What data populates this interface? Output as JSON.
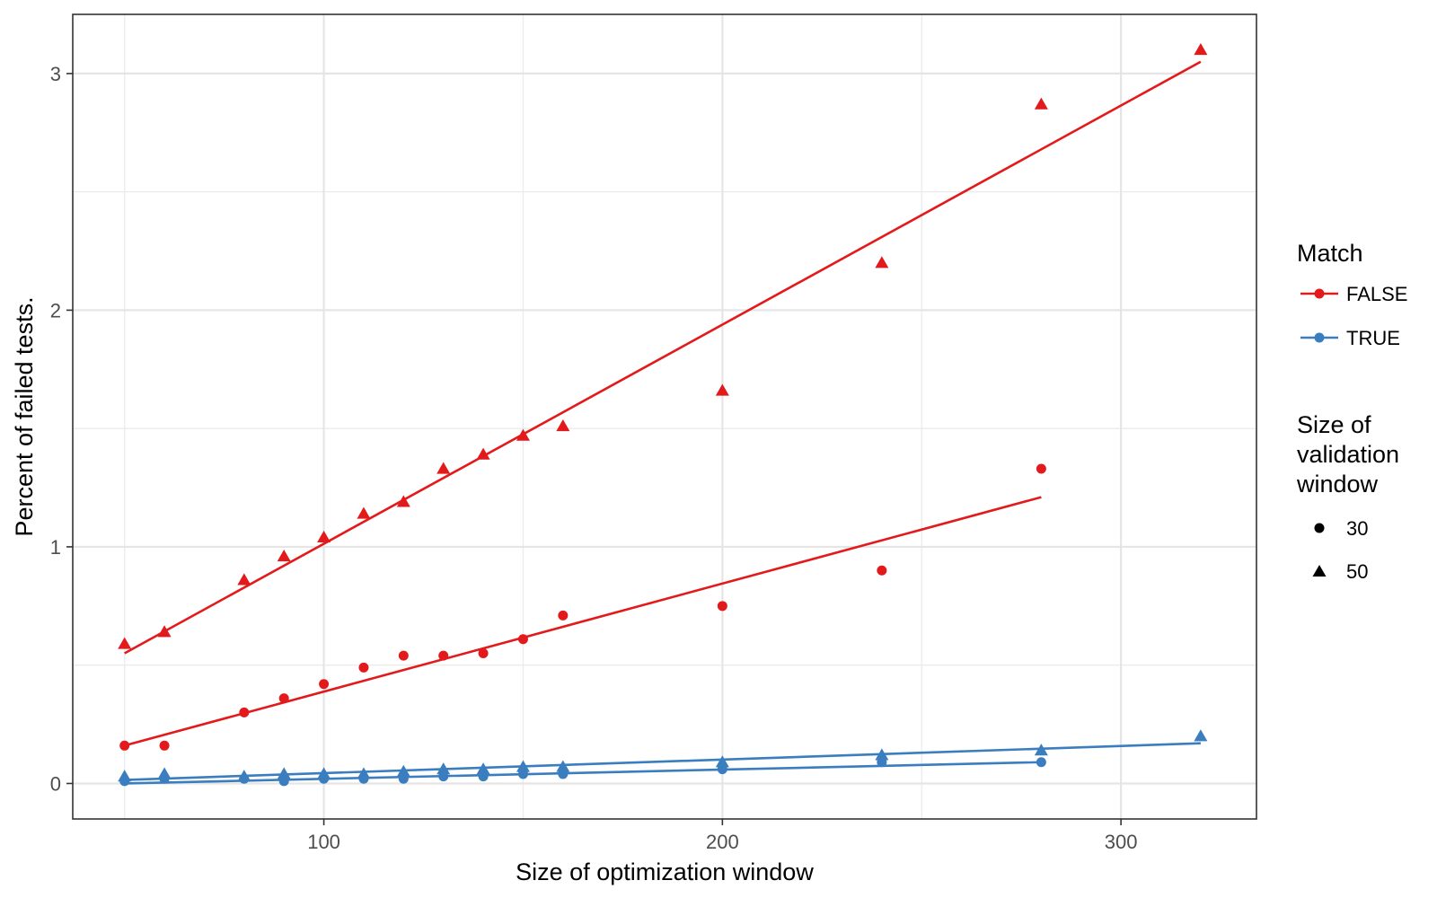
{
  "chart_data": {
    "type": "scatter",
    "title": "",
    "xlabel": "Size of optimization window",
    "ylabel": "Percent of failed tests.",
    "xlim": [
      37,
      334
    ],
    "ylim": [
      -0.15,
      3.25
    ],
    "x_ticks": [
      100,
      200,
      300
    ],
    "y_ticks": [
      0,
      1,
      2,
      3
    ],
    "grid": true,
    "legend_position": "right",
    "colors": {
      "FALSE": "#e31a1c",
      "TRUE": "#3a7ebf"
    },
    "legend": {
      "color_title": "Match",
      "color_entries": [
        "FALSE",
        "TRUE"
      ],
      "shape_title_lines": [
        "Size of",
        "validation",
        "window"
      ],
      "shape_entries": [
        "30",
        "50"
      ]
    },
    "series": [
      {
        "match": "FALSE",
        "validation": "50",
        "shape": "triangle",
        "x": [
          50,
          60,
          80,
          90,
          100,
          110,
          120,
          130,
          140,
          150,
          160,
          200,
          240,
          280,
          320
        ],
        "y": [
          0.59,
          0.64,
          0.86,
          0.96,
          1.04,
          1.14,
          1.19,
          1.33,
          1.39,
          1.47,
          1.51,
          1.66,
          2.2,
          2.87,
          3.1
        ],
        "fit": [
          [
            50,
            0.55
          ],
          [
            320,
            3.05
          ]
        ]
      },
      {
        "match": "FALSE",
        "validation": "30",
        "shape": "circle",
        "x": [
          50,
          60,
          80,
          90,
          100,
          110,
          120,
          130,
          140,
          150,
          160,
          200,
          240,
          280
        ],
        "y": [
          0.16,
          0.16,
          0.3,
          0.36,
          0.42,
          0.49,
          0.54,
          0.54,
          0.55,
          0.61,
          0.71,
          0.75,
          0.9,
          1.33
        ],
        "fit": [
          [
            50,
            0.16
          ],
          [
            280,
            1.21
          ]
        ]
      },
      {
        "match": "TRUE",
        "validation": "50",
        "shape": "triangle",
        "x": [
          50,
          60,
          80,
          90,
          100,
          110,
          120,
          130,
          140,
          150,
          160,
          200,
          240,
          280,
          320
        ],
        "y": [
          0.03,
          0.04,
          0.03,
          0.04,
          0.04,
          0.04,
          0.05,
          0.06,
          0.06,
          0.07,
          0.07,
          0.09,
          0.12,
          0.14,
          0.2
        ],
        "fit": [
          [
            50,
            0.015
          ],
          [
            320,
            0.17
          ]
        ]
      },
      {
        "match": "TRUE",
        "validation": "30",
        "shape": "circle",
        "x": [
          50,
          60,
          80,
          90,
          100,
          110,
          120,
          130,
          140,
          150,
          160,
          200,
          240,
          280
        ],
        "y": [
          0.01,
          0.02,
          0.02,
          0.01,
          0.02,
          0.02,
          0.02,
          0.03,
          0.03,
          0.04,
          0.04,
          0.06,
          0.09,
          0.09
        ],
        "fit": [
          [
            50,
            0.0
          ],
          [
            280,
            0.09
          ]
        ]
      }
    ]
  }
}
